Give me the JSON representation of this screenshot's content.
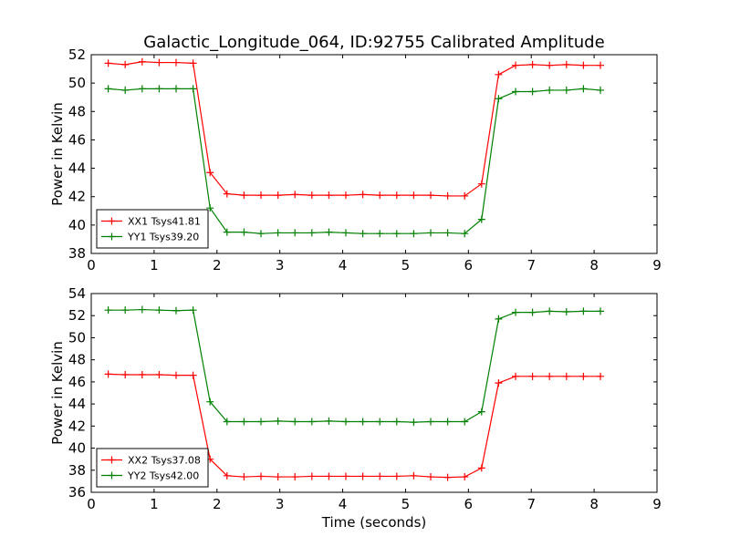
{
  "chart_data": [
    {
      "type": "line",
      "title": "Galactic_Longitude_064, ID:92755 Calibrated Amplitude",
      "xlabel": "",
      "ylabel": "Power in Kelvin",
      "xlim": [
        0,
        9
      ],
      "ylim": [
        38,
        52
      ],
      "xticks": [
        "0",
        "1",
        "2",
        "3",
        "4",
        "5",
        "6",
        "7",
        "8",
        "9"
      ],
      "yticks": [
        "38",
        "40",
        "42",
        "44",
        "46",
        "48",
        "50",
        "52"
      ],
      "grid": false,
      "legend_position": "lower-left",
      "x": [
        0.27,
        0.54,
        0.81,
        1.08,
        1.35,
        1.62,
        1.89,
        2.16,
        2.43,
        2.7,
        2.97,
        3.24,
        3.51,
        3.78,
        4.05,
        4.32,
        4.59,
        4.86,
        5.13,
        5.4,
        5.67,
        5.94,
        6.21,
        6.48,
        6.75,
        7.02,
        7.29,
        7.56,
        7.83,
        8.1
      ],
      "series": [
        {
          "name": "XX1 Tsys41.81",
          "color": "#ff0000",
          "values": [
            51.4,
            51.3,
            51.5,
            51.45,
            51.45,
            51.4,
            43.7,
            42.2,
            42.1,
            42.1,
            42.1,
            42.15,
            42.1,
            42.1,
            42.1,
            42.15,
            42.1,
            42.1,
            42.1,
            42.1,
            42.05,
            42.05,
            42.9,
            50.6,
            51.25,
            51.3,
            51.25,
            51.3,
            51.25,
            51.25
          ]
        },
        {
          "name": "YY1 Tsys39.20",
          "color": "#008000",
          "values": [
            49.6,
            49.5,
            49.6,
            49.6,
            49.6,
            49.6,
            41.2,
            39.5,
            39.5,
            39.4,
            39.45,
            39.45,
            39.45,
            39.5,
            39.45,
            39.4,
            39.4,
            39.4,
            39.4,
            39.45,
            39.45,
            39.4,
            40.4,
            48.9,
            49.4,
            49.4,
            49.5,
            49.5,
            49.6,
            49.5
          ]
        }
      ]
    },
    {
      "type": "line",
      "title": "",
      "xlabel": "Time (seconds)",
      "ylabel": "Power in Kelvin",
      "xlim": [
        0,
        9
      ],
      "ylim": [
        36,
        54
      ],
      "xticks": [
        "0",
        "1",
        "2",
        "3",
        "4",
        "5",
        "6",
        "7",
        "8",
        "9"
      ],
      "yticks": [
        "36",
        "38",
        "40",
        "42",
        "44",
        "46",
        "48",
        "50",
        "52",
        "54"
      ],
      "grid": false,
      "legend_position": "lower-left",
      "x": [
        0.27,
        0.54,
        0.81,
        1.08,
        1.35,
        1.62,
        1.89,
        2.16,
        2.43,
        2.7,
        2.97,
        3.24,
        3.51,
        3.78,
        4.05,
        4.32,
        4.59,
        4.86,
        5.13,
        5.4,
        5.67,
        5.94,
        6.21,
        6.48,
        6.75,
        7.02,
        7.29,
        7.56,
        7.83,
        8.1
      ],
      "series": [
        {
          "name": "XX2 Tsys37.08",
          "color": "#ff0000",
          "values": [
            46.7,
            46.65,
            46.65,
            46.65,
            46.6,
            46.6,
            39.0,
            37.5,
            37.4,
            37.45,
            37.4,
            37.4,
            37.45,
            37.45,
            37.45,
            37.45,
            37.45,
            37.45,
            37.5,
            37.4,
            37.35,
            37.4,
            38.2,
            45.9,
            46.5,
            46.5,
            46.5,
            46.5,
            46.5,
            46.5
          ]
        },
        {
          "name": "YY2 Tsys42.00",
          "color": "#008000",
          "values": [
            52.5,
            52.5,
            52.55,
            52.5,
            52.45,
            52.5,
            44.2,
            42.4,
            42.4,
            42.4,
            42.45,
            42.4,
            42.4,
            42.45,
            42.4,
            42.4,
            42.4,
            42.4,
            42.35,
            42.4,
            42.4,
            42.4,
            43.3,
            51.7,
            52.3,
            52.3,
            52.4,
            52.35,
            52.4,
            52.4
          ]
        }
      ]
    }
  ]
}
